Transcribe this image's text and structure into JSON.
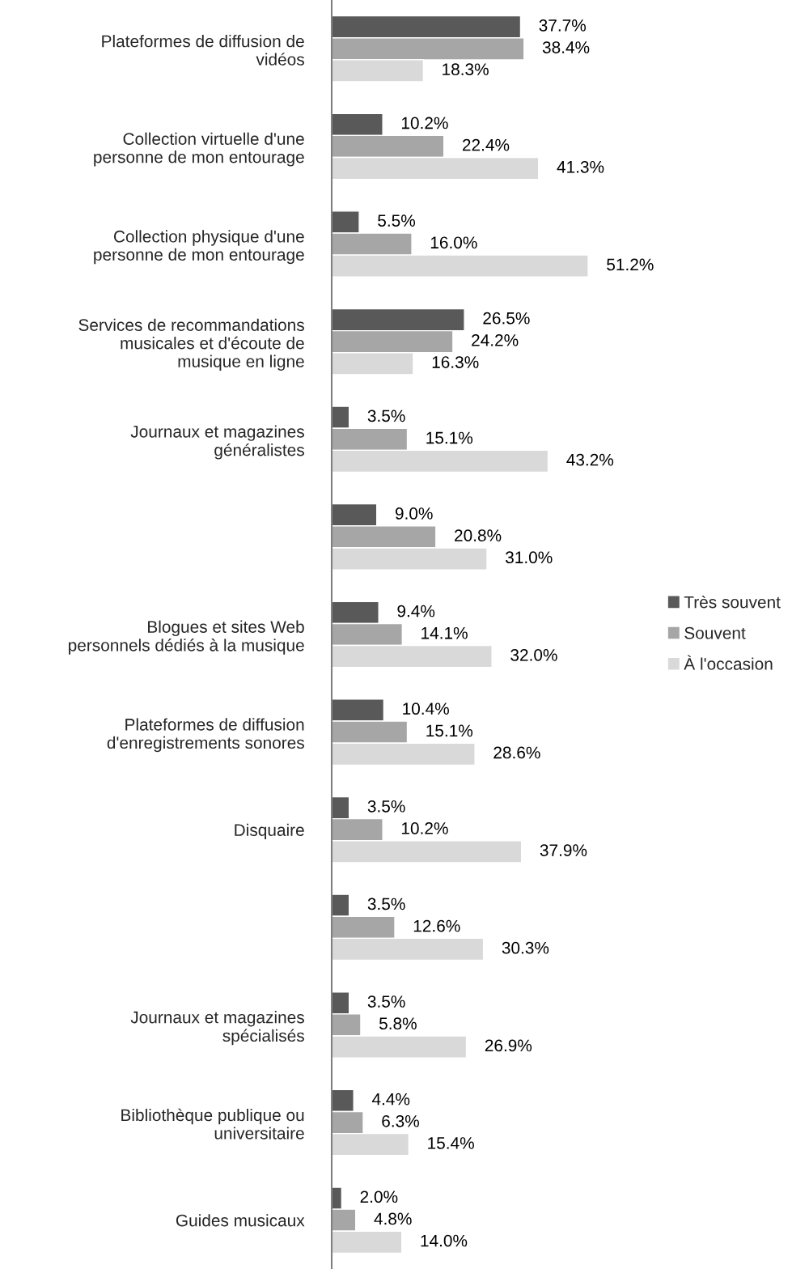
{
  "chart_data": {
    "type": "bar",
    "orientation": "horizontal",
    "legend": "right",
    "categories": [
      "Plateformes de diffusion de\nvidéos",
      "Collection virtuelle d'une\npersonne de mon entourage",
      "Collection physique d'une\npersonne de mon entourage",
      "Services de recommandations\nmusicales et d'écoute de\nmusique en ligne",
      "Journaux et magazines\ngénéralistes",
      null,
      "Blogues et sites Web\npersonnels dédiés à la musique",
      "Plateformes de diffusion\nd'enregistrements sonores",
      "Disquaire",
      null,
      "Journaux et magazines\nspécialisés",
      "Bibliothèque publique ou\nuniversitaire",
      "Guides musicaux"
    ],
    "series": [
      {
        "name": "Très souvent",
        "color": "#595959",
        "values": [
          37.7,
          10.2,
          5.5,
          26.5,
          3.5,
          9.0,
          9.4,
          10.4,
          3.5,
          3.5,
          3.5,
          4.4,
          2.0
        ],
        "value_labels": [
          "37.7%",
          "10.2%",
          "5.5%",
          "26.5%",
          "3.5%",
          "9.0%",
          "9.4%",
          "10.4%",
          "3.5%",
          "3.5%",
          "3.5%",
          "4.4%",
          "2.0%"
        ]
      },
      {
        "name": "Souvent",
        "color": "#a6a6a6",
        "values": [
          38.4,
          22.4,
          16.0,
          24.2,
          15.1,
          20.8,
          14.1,
          15.1,
          10.2,
          12.6,
          5.8,
          6.3,
          4.8
        ],
        "value_labels": [
          "38.4%",
          "22.4%",
          "16.0%",
          "24.2%",
          "15.1%",
          "20.8%",
          "14.1%",
          "15.1%",
          "10.2%",
          "12.6%",
          "5.8%",
          "6.3%",
          "4.8%"
        ]
      },
      {
        "name": "À l'occasion",
        "color": "#d9d9d9",
        "values": [
          18.3,
          41.3,
          51.2,
          16.3,
          43.2,
          31.0,
          32.0,
          28.6,
          37.9,
          30.3,
          26.9,
          15.4,
          14.0
        ],
        "value_labels": [
          "18.3%",
          "41.3%",
          "51.2%",
          "16.3%",
          "43.2%",
          "31.0%",
          "32.0%",
          "28.6%",
          "37.9%",
          "30.3%",
          "26.9%",
          "15.4%",
          "14.0%"
        ]
      }
    ]
  }
}
